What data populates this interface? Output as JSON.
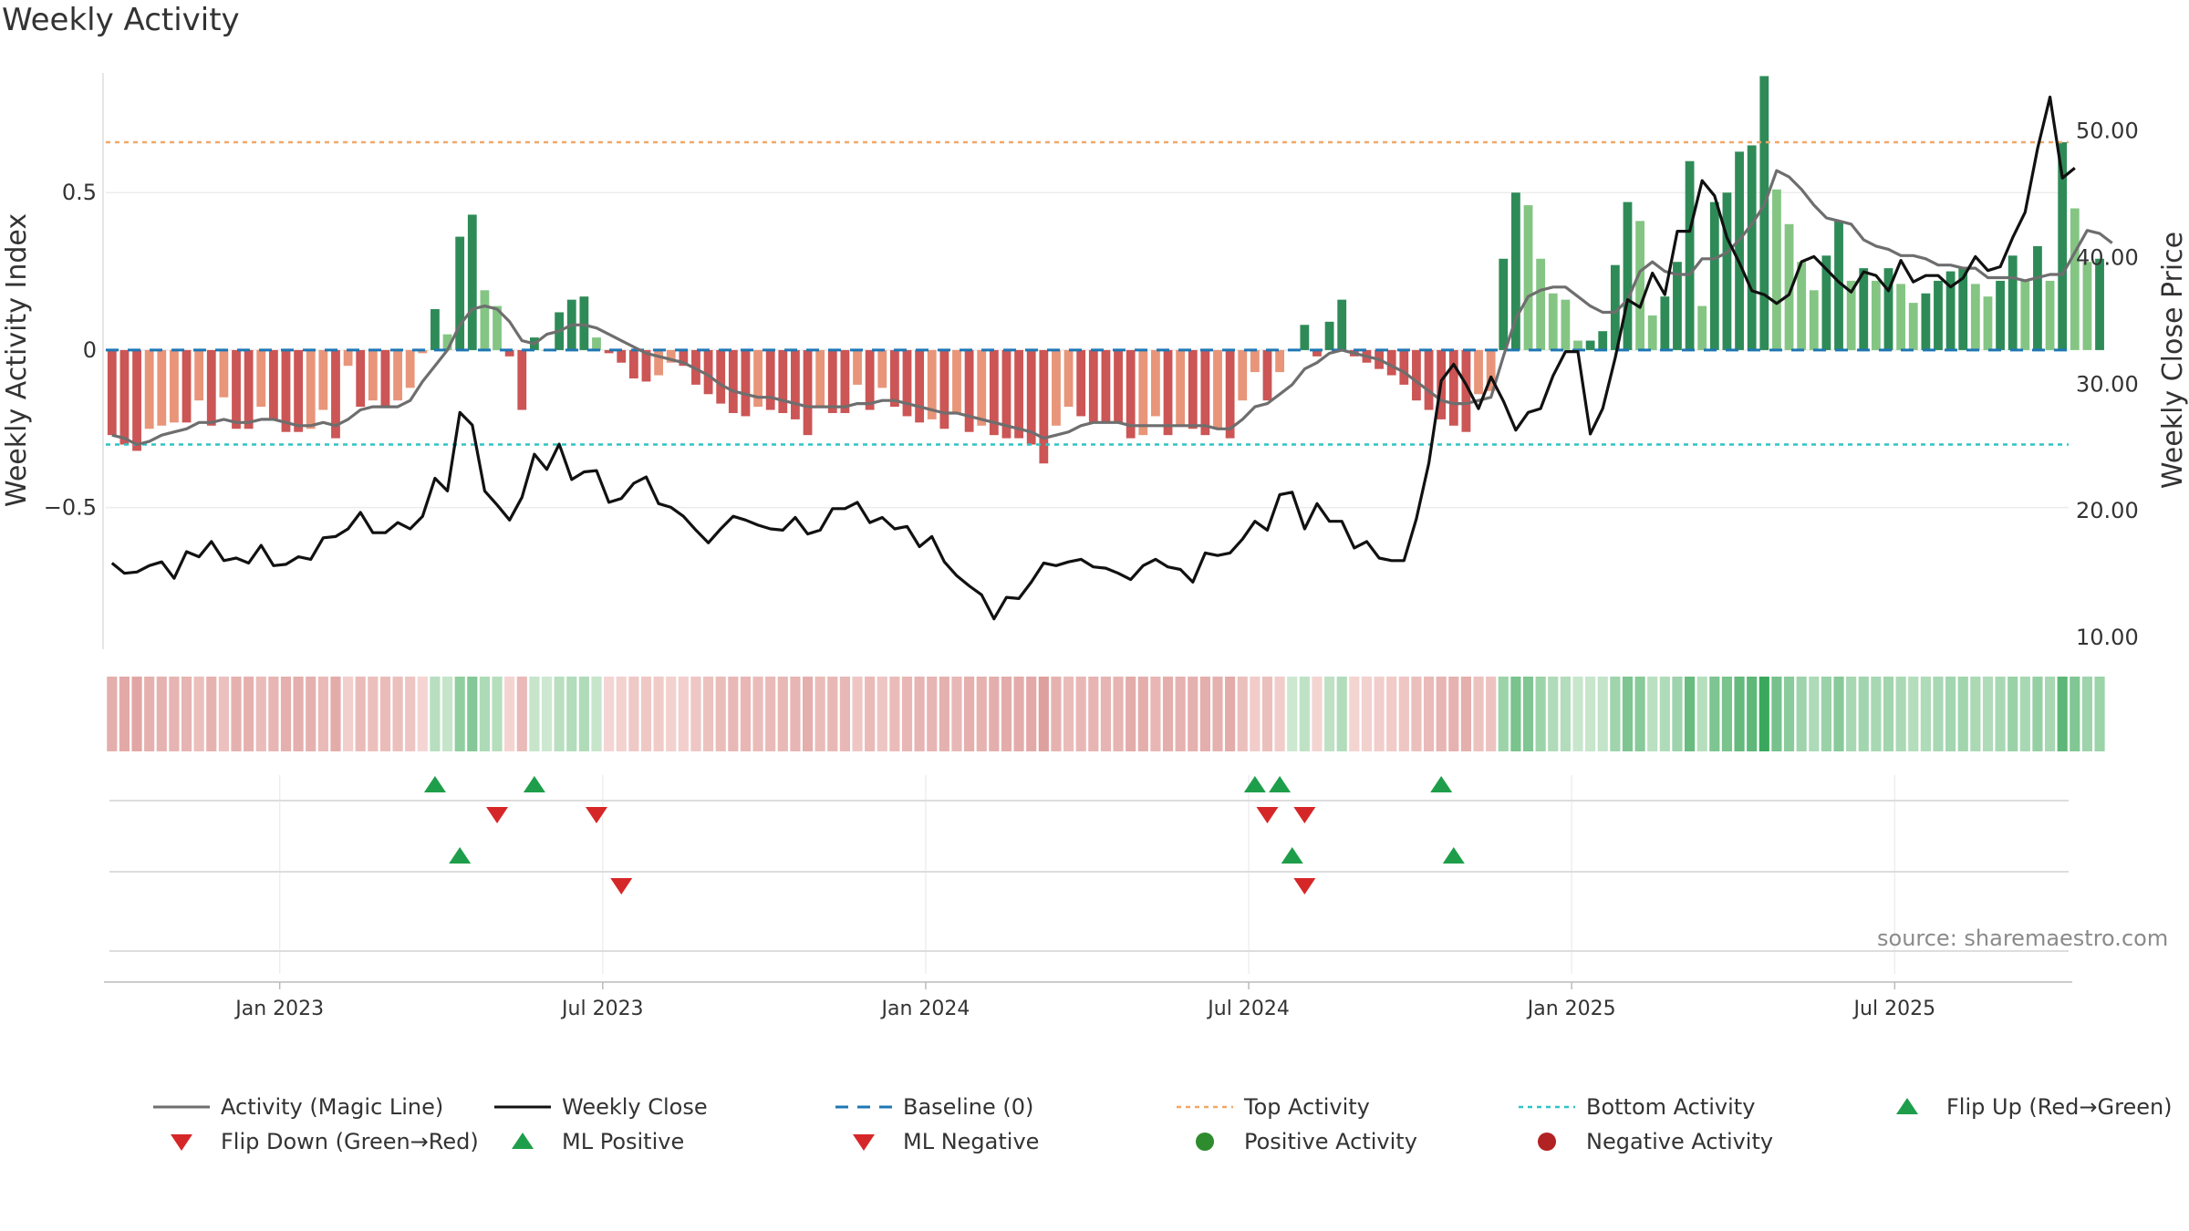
{
  "chart_data": {
    "type": "bar",
    "title": "Weekly Activity",
    "ylabel": "Weekly Activity Index",
    "y2label": "Weekly Close Price",
    "source": "source: sharemaestro.com",
    "start_date": "2022-09-30",
    "weeks": 158,
    "ylim": [
      -0.95,
      0.88
    ],
    "y2lim": [
      9.0,
      54.5
    ],
    "y_ticks": [
      {
        "v": 0.5,
        "label": "0.5"
      },
      {
        "v": 0,
        "label": "0"
      },
      {
        "v": -0.5,
        "label": "−0.5"
      }
    ],
    "y2_ticks": [
      {
        "v": 50,
        "label": "50.00"
      },
      {
        "v": 40,
        "label": "40.00"
      },
      {
        "v": 30,
        "label": "30.00"
      },
      {
        "v": 20,
        "label": "20.00"
      },
      {
        "v": 10,
        "label": "10.00"
      }
    ],
    "x_ticks": [
      {
        "week": 13.5,
        "label": "Jan 2023"
      },
      {
        "week": 39.5,
        "label": "Jul 2023"
      },
      {
        "week": 65.5,
        "label": "Jan 2024"
      },
      {
        "week": 91.5,
        "label": "Jul 2024"
      },
      {
        "week": 117.5,
        "label": "Jan 2025"
      },
      {
        "week": 143.5,
        "label": "Jul 2025"
      }
    ],
    "top_activity": 0.66,
    "bottom_activity": -0.3,
    "activity": [
      -0.27,
      -0.3,
      -0.32,
      -0.25,
      -0.24,
      -0.23,
      -0.23,
      -0.16,
      -0.24,
      -0.15,
      -0.25,
      -0.25,
      -0.18,
      -0.22,
      -0.26,
      -0.26,
      -0.25,
      -0.19,
      -0.28,
      -0.05,
      -0.18,
      -0.16,
      -0.18,
      -0.16,
      -0.12,
      -0.01,
      0.13,
      0.05,
      0.36,
      0.43,
      0.19,
      0.14,
      -0.02,
      -0.19,
      0.04,
      0.0,
      0.12,
      0.16,
      0.17,
      0.04,
      -0.01,
      -0.04,
      -0.09,
      -0.1,
      -0.08,
      -0.04,
      -0.05,
      -0.11,
      -0.14,
      -0.17,
      -0.2,
      -0.21,
      -0.18,
      -0.19,
      -0.2,
      -0.22,
      -0.27,
      -0.18,
      -0.2,
      -0.2,
      -0.11,
      -0.19,
      -0.12,
      -0.18,
      -0.21,
      -0.23,
      -0.22,
      -0.25,
      -0.2,
      -0.26,
      -0.24,
      -0.27,
      -0.28,
      -0.28,
      -0.3,
      -0.36,
      -0.24,
      -0.18,
      -0.21,
      -0.23,
      -0.23,
      -0.23,
      -0.28,
      -0.27,
      -0.21,
      -0.27,
      -0.24,
      -0.25,
      -0.27,
      -0.25,
      -0.28,
      -0.16,
      -0.07,
      -0.16,
      -0.07,
      0.0,
      0.08,
      -0.02,
      0.09,
      0.16,
      -0.02,
      -0.04,
      -0.06,
      -0.08,
      -0.11,
      -0.16,
      -0.19,
      -0.22,
      -0.24,
      -0.26,
      -0.14,
      -0.13,
      0.29,
      0.5,
      0.46,
      0.29,
      0.18,
      0.16,
      0.03,
      0.03,
      0.06,
      0.27,
      0.47,
      0.41,
      0.11,
      0.17,
      0.28,
      0.6,
      0.14,
      0.47,
      0.5,
      0.63,
      0.65,
      0.87,
      0.51,
      0.4,
      0.28,
      0.19,
      0.3,
      0.41,
      0.22,
      0.26,
      0.22,
      0.26,
      0.21,
      0.15,
      0.18,
      0.22,
      0.25,
      0.26,
      0.21,
      0.17,
      0.22,
      0.3,
      0.22,
      0.33,
      0.22,
      0.66,
      0.45,
      0.28,
      0.29
    ],
    "magic_line": [
      -0.27,
      -0.28,
      -0.3,
      -0.29,
      -0.27,
      -0.26,
      -0.25,
      -0.23,
      -0.23,
      -0.22,
      -0.23,
      -0.23,
      -0.22,
      -0.22,
      -0.23,
      -0.24,
      -0.24,
      -0.23,
      -0.24,
      -0.22,
      -0.19,
      -0.18,
      -0.18,
      -0.18,
      -0.16,
      -0.1,
      -0.05,
      0.0,
      0.08,
      0.13,
      0.14,
      0.13,
      0.09,
      0.03,
      0.02,
      0.05,
      0.06,
      0.08,
      0.08,
      0.07,
      0.05,
      0.03,
      0.01,
      -0.01,
      -0.02,
      -0.03,
      -0.04,
      -0.06,
      -0.08,
      -0.11,
      -0.13,
      -0.14,
      -0.15,
      -0.15,
      -0.16,
      -0.17,
      -0.18,
      -0.18,
      -0.18,
      -0.18,
      -0.17,
      -0.17,
      -0.16,
      -0.16,
      -0.17,
      -0.18,
      -0.19,
      -0.2,
      -0.2,
      -0.21,
      -0.22,
      -0.23,
      -0.24,
      -0.25,
      -0.26,
      -0.28,
      -0.27,
      -0.26,
      -0.24,
      -0.23,
      -0.23,
      -0.23,
      -0.24,
      -0.24,
      -0.24,
      -0.24,
      -0.24,
      -0.24,
      -0.24,
      -0.25,
      -0.25,
      -0.22,
      -0.18,
      -0.17,
      -0.14,
      -0.11,
      -0.06,
      -0.04,
      -0.01,
      0.0,
      -0.01,
      -0.02,
      -0.03,
      -0.05,
      -0.07,
      -0.1,
      -0.13,
      -0.16,
      -0.17,
      -0.17,
      -0.16,
      -0.15,
      -0.02,
      0.1,
      0.17,
      0.19,
      0.2,
      0.2,
      0.17,
      0.14,
      0.12,
      0.12,
      0.16,
      0.25,
      0.28,
      0.25,
      0.24,
      0.24,
      0.29,
      0.29,
      0.31,
      0.35,
      0.4,
      0.46,
      0.57,
      0.55,
      0.51,
      0.46,
      0.42,
      0.41,
      0.4,
      0.35,
      0.33,
      0.32,
      0.3,
      0.3,
      0.29,
      0.27,
      0.27,
      0.26,
      0.26,
      0.23,
      0.23,
      0.23,
      0.22,
      0.23,
      0.24,
      0.24,
      0.31,
      0.38,
      0.37,
      0.34
    ],
    "close": [
      15.8,
      15.0,
      15.1,
      15.6,
      15.9,
      14.6,
      16.7,
      16.3,
      17.5,
      16.0,
      16.2,
      15.8,
      17.2,
      15.6,
      15.7,
      16.3,
      16.1,
      17.8,
      17.9,
      18.5,
      19.8,
      18.2,
      18.2,
      19.0,
      18.5,
      19.5,
      22.5,
      21.5,
      27.7,
      26.7,
      21.5,
      20.4,
      19.2,
      21.0,
      24.4,
      23.2,
      25.2,
      22.4,
      23.0,
      23.1,
      20.6,
      20.9,
      22.1,
      22.6,
      20.5,
      20.2,
      19.5,
      18.4,
      17.4,
      18.5,
      19.5,
      19.2,
      18.8,
      18.5,
      18.4,
      19.4,
      18.1,
      18.4,
      20.1,
      20.1,
      20.6,
      19.0,
      19.4,
      18.5,
      18.7,
      17.1,
      17.9,
      15.9,
      14.8,
      14.0,
      13.3,
      11.4,
      13.1,
      13.0,
      14.3,
      15.8,
      15.6,
      15.9,
      16.1,
      15.5,
      15.4,
      15.0,
      14.5,
      15.6,
      16.1,
      15.5,
      15.3,
      14.3,
      16.6,
      16.4,
      16.6,
      17.7,
      19.1,
      18.4,
      21.2,
      21.4,
      18.5,
      20.5,
      19.1,
      19.1,
      17.0,
      17.5,
      16.2,
      16.0,
      16.0,
      19.3,
      23.7,
      30.2,
      31.5,
      29.9,
      28.0,
      30.5,
      28.6,
      26.3,
      27.7,
      28.0,
      30.6,
      32.5,
      32.5,
      26.0,
      28.0,
      32.0,
      36.6,
      36.0,
      38.7,
      37.0,
      42.0,
      42.0,
      46.0,
      44.8,
      41.5,
      39.5,
      37.3,
      37.0,
      36.3,
      37.0,
      39.6,
      40.0,
      39.0,
      38.0,
      37.2,
      38.8,
      38.5,
      37.3,
      39.7,
      38.0,
      38.5,
      38.5,
      37.6,
      38.3,
      40.0,
      38.9,
      39.2,
      41.5,
      43.5,
      48.5,
      52.6,
      46.2,
      47.0
    ],
    "heat_strip": [
      -0.27,
      -0.3,
      -0.32,
      -0.25,
      -0.24,
      -0.23,
      -0.23,
      -0.16,
      -0.24,
      -0.15,
      -0.25,
      -0.25,
      -0.18,
      -0.22,
      -0.26,
      -0.26,
      -0.25,
      -0.19,
      -0.28,
      -0.05,
      -0.18,
      -0.16,
      -0.18,
      -0.16,
      -0.12,
      -0.01,
      0.13,
      0.05,
      0.36,
      0.43,
      0.19,
      0.14,
      -0.02,
      -0.19,
      0.04,
      0.0,
      0.12,
      0.16,
      0.17,
      0.04,
      -0.01,
      -0.04,
      -0.09,
      -0.1,
      -0.08,
      -0.04,
      -0.05,
      -0.11,
      -0.14,
      -0.17,
      -0.2,
      -0.21,
      -0.18,
      -0.19,
      -0.2,
      -0.22,
      -0.27,
      -0.18,
      -0.2,
      -0.2,
      -0.11,
      -0.19,
      -0.12,
      -0.18,
      -0.21,
      -0.23,
      -0.22,
      -0.25,
      -0.2,
      -0.26,
      -0.24,
      -0.27,
      -0.28,
      -0.28,
      -0.3,
      -0.36,
      -0.24,
      -0.18,
      -0.21,
      -0.23,
      -0.23,
      -0.23,
      -0.28,
      -0.27,
      -0.21,
      -0.27,
      -0.24,
      -0.25,
      -0.27,
      -0.25,
      -0.28,
      -0.16,
      -0.07,
      -0.16,
      -0.07,
      0.0,
      0.08,
      -0.02,
      0.09,
      0.16,
      -0.02,
      -0.04,
      -0.06,
      -0.08,
      -0.11,
      -0.16,
      -0.19,
      -0.22,
      -0.24,
      -0.26,
      -0.14,
      -0.13,
      0.29,
      0.5,
      0.46,
      0.29,
      0.18,
      0.16,
      0.03,
      0.03,
      0.06,
      0.27,
      0.47,
      0.41,
      0.11,
      0.17,
      0.28,
      0.6,
      0.14,
      0.47,
      0.5,
      0.63,
      0.65,
      0.87,
      0.51,
      0.4,
      0.28,
      0.19,
      0.3,
      0.41,
      0.22,
      0.26,
      0.22,
      0.26,
      0.21,
      0.15,
      0.18,
      0.22,
      0.25,
      0.26,
      0.21,
      0.17,
      0.22,
      0.3,
      0.22,
      0.33,
      0.22,
      0.66,
      0.45,
      0.28,
      0.29
    ],
    "flip_up_weeks": [
      26,
      34,
      92,
      94,
      107
    ],
    "flip_down_weeks": [
      31,
      39,
      93,
      96
    ],
    "ml_positive_weeks": [
      28,
      95,
      108
    ],
    "ml_negative_weeks": [
      41,
      96
    ],
    "colors": {
      "red_strong": "#cc5555",
      "red_light": "#e8957a",
      "green_strong": "#2e8b57",
      "green_light": "#84c584",
      "magic_line": "#6e6e6e",
      "close_line": "#111111",
      "baseline": "#1f77b4",
      "top": "#f0a868",
      "bottom": "#2ec4c4",
      "flip_up": "#1e9e4a",
      "flip_down": "#d62728",
      "positive_dot": "#2e8b2e",
      "negative_dot": "#b22222"
    },
    "legend": [
      {
        "label": "Activity (Magic Line)",
        "symbol": "line",
        "color": "#6e6e6e"
      },
      {
        "label": "Weekly Close",
        "symbol": "line",
        "color": "#111111"
      },
      {
        "label": "Baseline (0)",
        "symbol": "dash",
        "color": "#1f77b4"
      },
      {
        "label": "Top Activity",
        "symbol": "dot-line",
        "color": "#f0a868"
      },
      {
        "label": "Bottom Activity",
        "symbol": "dot-line",
        "color": "#2ec4c4"
      },
      {
        "label": "Flip Up (Red→Green)",
        "symbol": "tri-up",
        "color": "#1e9e4a"
      },
      {
        "label": "Flip Down (Green→Red)",
        "symbol": "tri-down",
        "color": "#d62728"
      },
      {
        "label": "ML Positive",
        "symbol": "tri-up",
        "color": "#1e9e4a"
      },
      {
        "label": "ML Negative",
        "symbol": "tri-down",
        "color": "#d62728"
      },
      {
        "label": "Positive Activity",
        "symbol": "circle",
        "color": "#2e8b2e"
      },
      {
        "label": "Negative Activity",
        "symbol": "circle",
        "color": "#b22222"
      }
    ]
  }
}
